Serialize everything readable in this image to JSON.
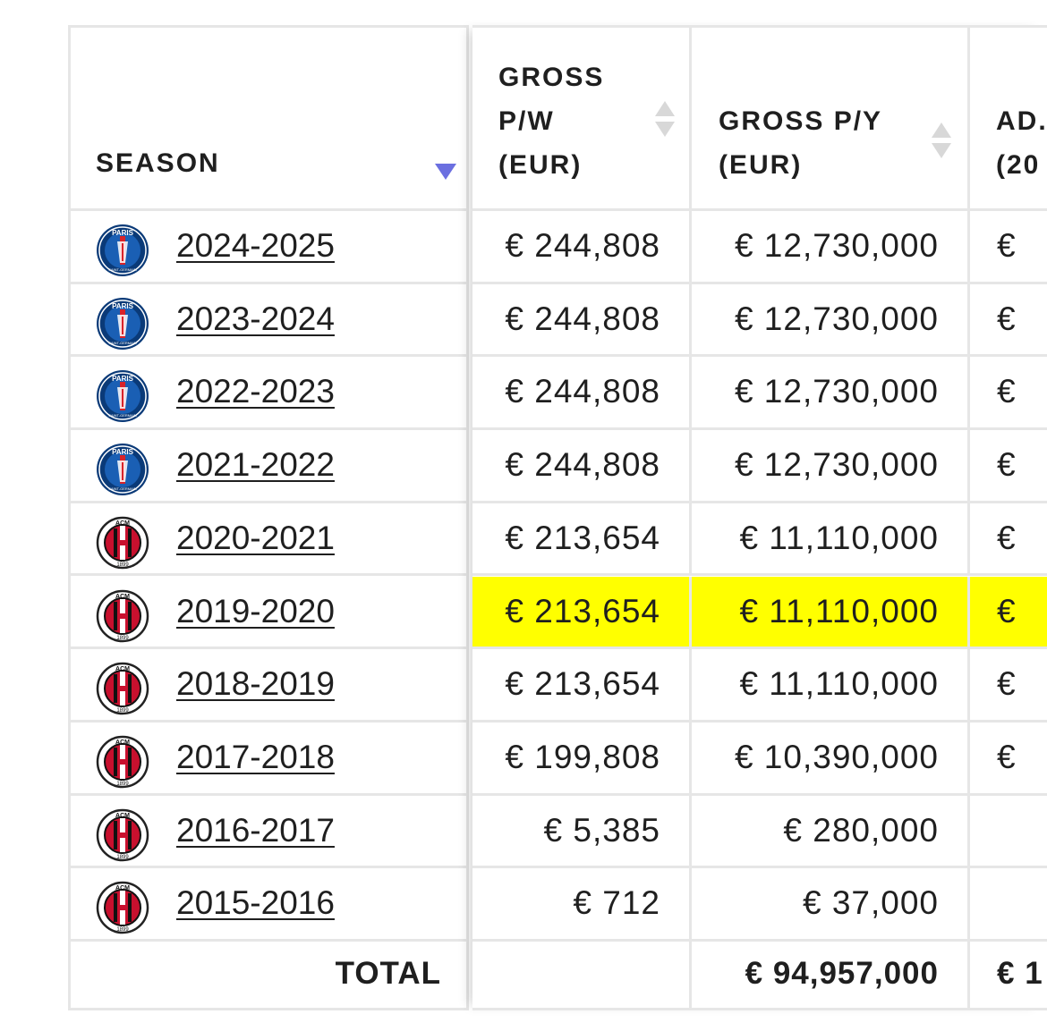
{
  "table": {
    "headers": {
      "season": "SEASON",
      "gross_pw": [
        "GROSS",
        "P/W",
        "(EUR)"
      ],
      "gross_py": [
        "GROSS P/Y",
        "(EUR)"
      ],
      "adj": [
        "AD.",
        "(20"
      ]
    },
    "rows": [
      {
        "season": "2024-2025",
        "club_icon": "psg-logo-icon",
        "gross_pw": "€ 244,808",
        "gross_py": "€ 12,730,000",
        "adj": "€",
        "highlight": false
      },
      {
        "season": "2023-2024",
        "club_icon": "psg-logo-icon",
        "gross_pw": "€ 244,808",
        "gross_py": "€ 12,730,000",
        "adj": "€",
        "highlight": false
      },
      {
        "season": "2022-2023",
        "club_icon": "psg-logo-icon",
        "gross_pw": "€ 244,808",
        "gross_py": "€ 12,730,000",
        "adj": "€",
        "highlight": false
      },
      {
        "season": "2021-2022",
        "club_icon": "psg-logo-icon",
        "gross_pw": "€ 244,808",
        "gross_py": "€ 12,730,000",
        "adj": "€",
        "highlight": false
      },
      {
        "season": "2020-2021",
        "club_icon": "ac-milan-logo-icon",
        "gross_pw": "€ 213,654",
        "gross_py": "€ 11,110,000",
        "adj": "€",
        "highlight": false
      },
      {
        "season": "2019-2020",
        "club_icon": "ac-milan-logo-icon",
        "gross_pw": "€ 213,654",
        "gross_py": "€ 11,110,000",
        "adj": "€",
        "highlight": true
      },
      {
        "season": "2018-2019",
        "club_icon": "ac-milan-logo-icon",
        "gross_pw": "€ 213,654",
        "gross_py": "€ 11,110,000",
        "adj": "€",
        "highlight": false
      },
      {
        "season": "2017-2018",
        "club_icon": "ac-milan-logo-icon",
        "gross_pw": "€ 199,808",
        "gross_py": "€ 10,390,000",
        "adj": "€",
        "highlight": false
      },
      {
        "season": "2016-2017",
        "club_icon": "ac-milan-logo-icon",
        "gross_pw": "€ 5,385",
        "gross_py": "€ 280,000",
        "adj": "",
        "highlight": false
      },
      {
        "season": "2015-2016",
        "club_icon": "ac-milan-logo-icon",
        "gross_pw": "€ 712",
        "gross_py": "€ 37,000",
        "adj": "",
        "highlight": false
      }
    ],
    "total": {
      "label": "TOTAL",
      "gross_pw": "",
      "gross_py": "€ 94,957,000",
      "adj": "€ 1"
    },
    "colors": {
      "highlight": "#ffff00",
      "sort_active": "#6b6fe0",
      "sort_inactive": "#d8d8d8",
      "border": "#e6e6e6"
    },
    "psg_logo_text": [
      "PARIS",
      "SAINT-GERMAIN"
    ],
    "milan_logo_text": [
      "ACM",
      "1899"
    ]
  }
}
